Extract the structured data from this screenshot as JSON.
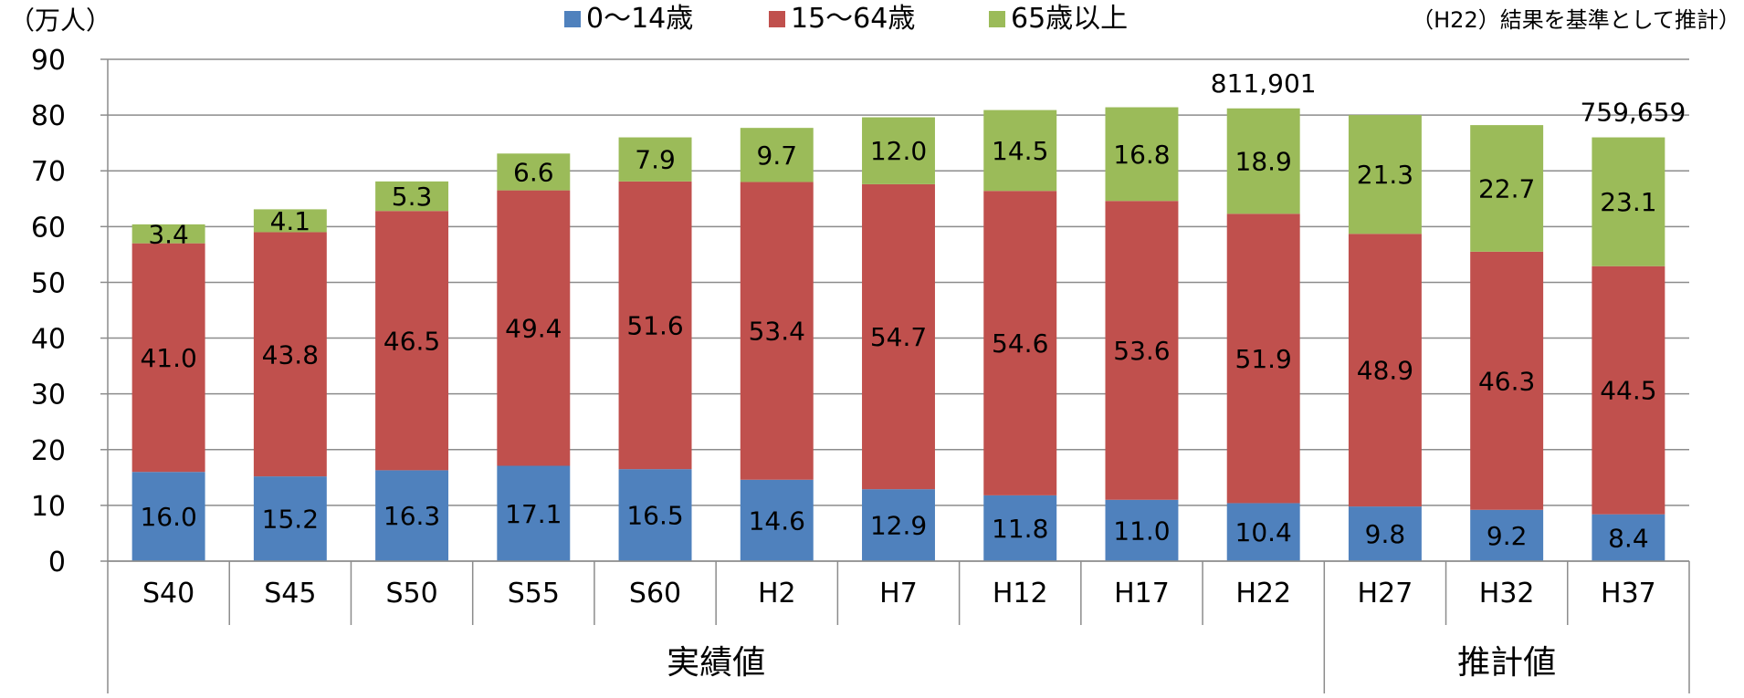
{
  "unit_label": "（万人）",
  "note": "（H22）結果を基準として推計）",
  "chart_data": {
    "type": "bar",
    "stacked": true,
    "categories": [
      "S40",
      "S45",
      "S50",
      "S55",
      "S60",
      "H2",
      "H7",
      "H12",
      "H17",
      "H22",
      "H27",
      "H32",
      "H37"
    ],
    "series": [
      {
        "name": "0〜14歳",
        "color": "#4F81BD",
        "values": [
          16.0,
          15.2,
          16.3,
          17.1,
          16.5,
          14.6,
          12.9,
          11.8,
          11.0,
          10.4,
          9.8,
          9.2,
          8.4
        ],
        "labels": [
          "16.0",
          "15.2",
          "16.3",
          "17.1",
          "16.5",
          "14.6",
          "12.9",
          "11.8",
          "11.0",
          "10.4",
          "9.8",
          "9.2",
          "8.4"
        ]
      },
      {
        "name": "15〜64歳",
        "color": "#C0504D",
        "values": [
          41.0,
          43.8,
          46.5,
          49.4,
          51.6,
          53.4,
          54.7,
          54.6,
          53.6,
          51.9,
          48.9,
          46.3,
          44.5
        ],
        "labels": [
          "41.0",
          "43.8",
          "46.5",
          "49.4",
          "51.6",
          "53.4",
          "54.7",
          "54.6",
          "53.6",
          "51.9",
          "48.9",
          "46.3",
          "44.5"
        ]
      },
      {
        "name": "65歳以上",
        "color": "#9BBB59",
        "values": [
          3.4,
          4.1,
          5.3,
          6.6,
          7.9,
          9.7,
          12.0,
          14.5,
          16.8,
          18.9,
          21.3,
          22.7,
          23.1
        ],
        "labels": [
          "3.4",
          "4.1",
          "5.3",
          "6.6",
          "7.9",
          "9.7",
          "12.0",
          "14.5",
          "16.8",
          "18.9",
          "21.3",
          "22.7",
          "23.1"
        ]
      }
    ],
    "annotations": [
      {
        "category": "H22",
        "text": "811,901"
      },
      {
        "category": "H37",
        "text": "759,659"
      }
    ],
    "ylim": [
      0,
      90
    ],
    "yticks": [
      0,
      10,
      20,
      30,
      40,
      50,
      60,
      70,
      80,
      90
    ],
    "grid": true,
    "legend_position": "top",
    "groups": [
      {
        "label": "実績値",
        "from": 0,
        "to": 9
      },
      {
        "label": "推計値",
        "from": 10,
        "to": 12
      }
    ]
  }
}
